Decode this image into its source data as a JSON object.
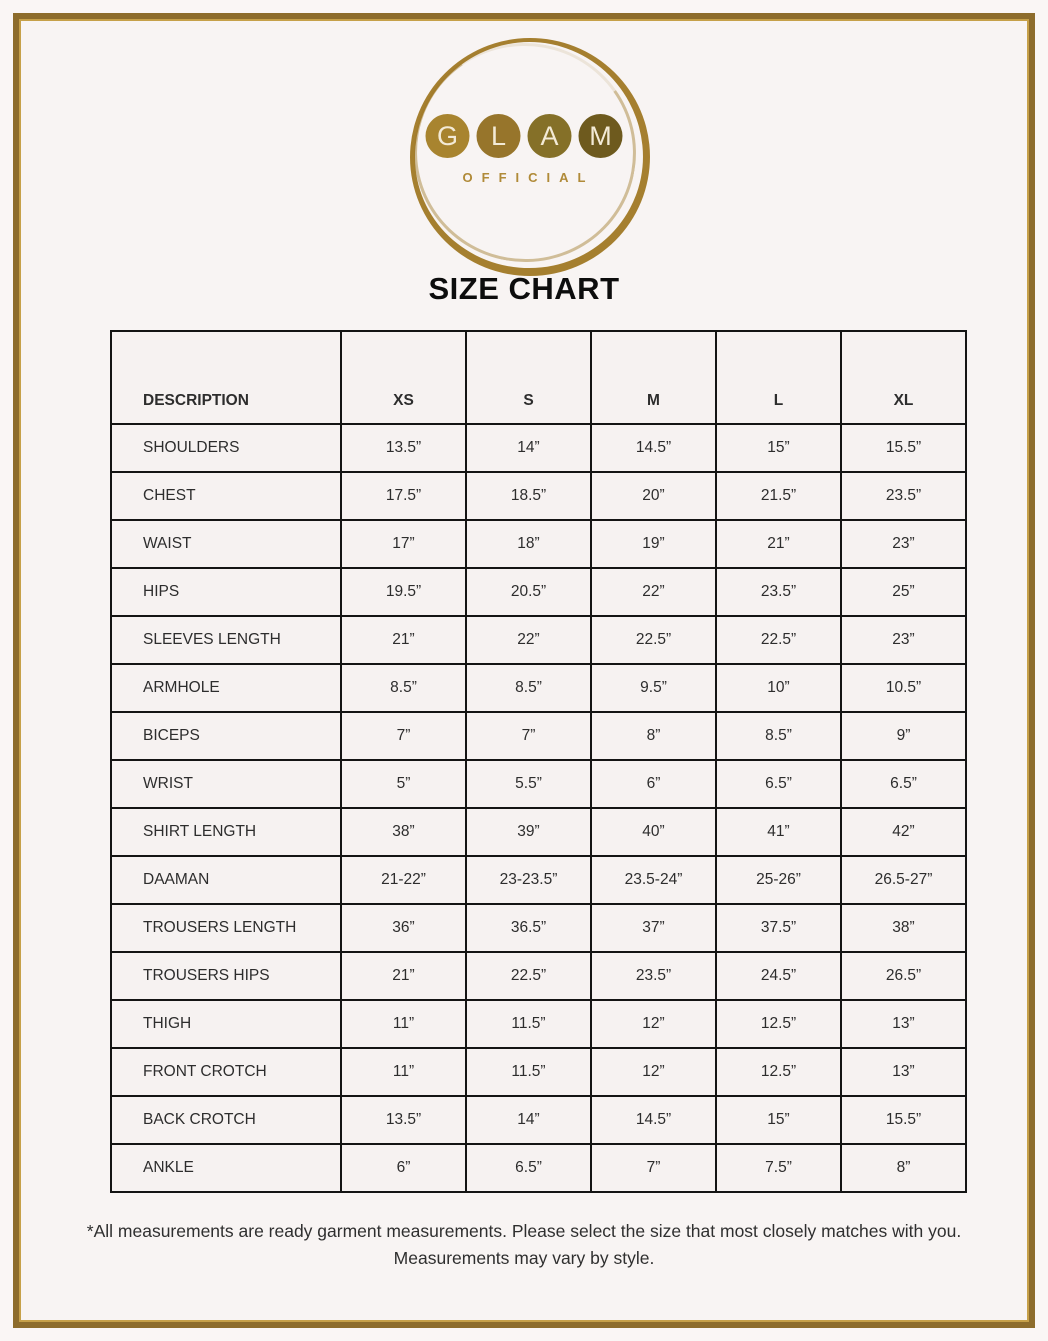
{
  "colors": {
    "frame_border": "#8d6c2c",
    "frame_inner_line": "#c6a049",
    "page_background": "#f8f4f3",
    "table_border": "#141414",
    "text": "#2d2d2d",
    "logo_ring": "#a57f2f",
    "logo_subtitle_color": "#b08a38",
    "logo_letter_stroke": "#f3ead6"
  },
  "logo": {
    "letters": [
      {
        "char": "G",
        "circle_color": "#a8842f"
      },
      {
        "char": "L",
        "circle_color": "#97752b"
      },
      {
        "char": "A",
        "circle_color": "#857028"
      },
      {
        "char": "M",
        "circle_color": "#6e5a1e"
      }
    ],
    "subtitle": "OFFICIAL"
  },
  "title": "SIZE CHART",
  "size_chart": {
    "columns": [
      "DESCRIPTION",
      "XS",
      "S",
      "M",
      "L",
      "XL"
    ],
    "rows": [
      {
        "label": "SHOULDERS",
        "values": [
          "13.5”",
          "14”",
          "14.5”",
          "15”",
          "15.5”"
        ]
      },
      {
        "label": "CHEST",
        "values": [
          "17.5”",
          "18.5”",
          "20”",
          "21.5”",
          "23.5”"
        ]
      },
      {
        "label": "WAIST",
        "values": [
          "17”",
          "18”",
          "19”",
          "21”",
          "23”"
        ]
      },
      {
        "label": "HIPS",
        "values": [
          "19.5”",
          "20.5”",
          "22”",
          "23.5”",
          "25”"
        ]
      },
      {
        "label": "SLEEVES LENGTH",
        "values": [
          "21”",
          "22”",
          "22.5”",
          "22.5”",
          "23”"
        ]
      },
      {
        "label": "ARMHOLE",
        "values": [
          "8.5”",
          "8.5”",
          "9.5”",
          "10”",
          "10.5”"
        ]
      },
      {
        "label": "BICEPS",
        "values": [
          "7”",
          "7”",
          "8”",
          "8.5”",
          "9”"
        ]
      },
      {
        "label": "WRIST",
        "values": [
          "5”",
          "5.5”",
          "6”",
          "6.5”",
          "6.5”"
        ]
      },
      {
        "label": "SHIRT LENGTH",
        "values": [
          "38”",
          "39”",
          "40”",
          "41”",
          "42”"
        ]
      },
      {
        "label": "DAAMAN",
        "values": [
          "21-22”",
          "23-23.5”",
          "23.5-24”",
          "25-26”",
          "26.5-27”"
        ]
      },
      {
        "label": "TROUSERS LENGTH",
        "values": [
          "36”",
          "36.5”",
          "37”",
          "37.5”",
          "38”"
        ]
      },
      {
        "label": "TROUSERS HIPS",
        "values": [
          "21”",
          "22.5”",
          "23.5”",
          "24.5”",
          "26.5”"
        ]
      },
      {
        "label": "THIGH",
        "values": [
          "11”",
          "11.5”",
          "12”",
          "12.5”",
          "13”"
        ]
      },
      {
        "label": "FRONT CROTCH",
        "values": [
          "11”",
          "11.5”",
          "12”",
          "12.5”",
          "13”"
        ]
      },
      {
        "label": "BACK CROTCH",
        "values": [
          "13.5”",
          "14”",
          "14.5”",
          "15”",
          "15.5”"
        ]
      },
      {
        "label": "ANKLE",
        "values": [
          "6”",
          "6.5”",
          "7”",
          "7.5”",
          "8”"
        ]
      }
    ]
  },
  "footer": {
    "line1": "*All measurements are ready garment measurements. Please select the size that most closely matches with you.",
    "line2": "Measurements may vary by style."
  }
}
